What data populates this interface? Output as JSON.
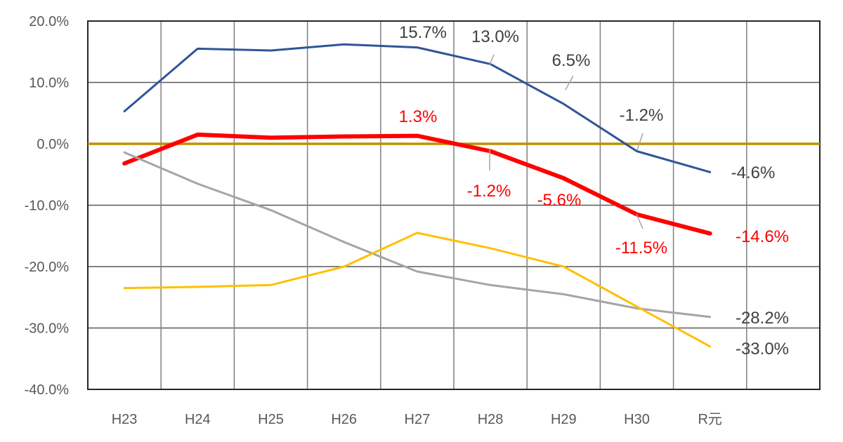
{
  "chart_data": {
    "type": "line",
    "title": "",
    "xlabel": "",
    "ylabel": "",
    "categories": [
      "H23",
      "H24",
      "H25",
      "H26",
      "H27",
      "H28",
      "H29",
      "H30",
      "R元"
    ],
    "ylim": [
      -40,
      20
    ],
    "yticks": [
      20,
      10,
      0,
      -10,
      -20,
      -30,
      -40
    ],
    "ytick_labels": [
      "20.0%",
      "10.0%",
      "0.0%",
      "-10.0%",
      "-20.0%",
      "-30.0%",
      "-40.0%"
    ],
    "grid": true,
    "legend": "none",
    "reference_line": {
      "value": 0,
      "color": "#BF9000"
    },
    "series": [
      {
        "name": "blue",
        "color": "#2F5597",
        "width": 3,
        "values": [
          5.3,
          15.5,
          15.2,
          16.2,
          15.7,
          13.0,
          6.5,
          -1.2,
          -4.6
        ],
        "labels": [
          null,
          null,
          null,
          null,
          "15.7%",
          "13.0%",
          "6.5%",
          "-1.2%",
          "-4.6%"
        ],
        "label_color": "#404040"
      },
      {
        "name": "red",
        "color": "#FF0000",
        "width": 6,
        "values": [
          -3.2,
          1.5,
          1.0,
          1.2,
          1.3,
          -1.2,
          -5.6,
          -11.5,
          -14.6
        ],
        "labels": [
          null,
          null,
          null,
          null,
          "1.3%",
          "-1.2%",
          "-5.6%",
          "-11.5%",
          "-14.6%"
        ],
        "label_color": "#FF0000"
      },
      {
        "name": "gray",
        "color": "#A5A5A5",
        "width": 3,
        "values": [
          -1.4,
          -6.5,
          -10.8,
          -16.0,
          -20.8,
          -23.0,
          -24.5,
          -26.8,
          -28.2
        ],
        "labels": [
          null,
          null,
          null,
          null,
          null,
          null,
          null,
          null,
          "-28.2%"
        ],
        "label_color": "#404040"
      },
      {
        "name": "yellow",
        "color": "#FFC000",
        "width": 3,
        "values": [
          -23.5,
          -23.3,
          -23.0,
          -20.0,
          -14.5,
          -17.0,
          -20.0,
          -26.5,
          -33.0
        ],
        "labels": [
          null,
          null,
          null,
          null,
          null,
          null,
          null,
          null,
          "-33.0%"
        ],
        "label_color": "#404040"
      }
    ]
  }
}
